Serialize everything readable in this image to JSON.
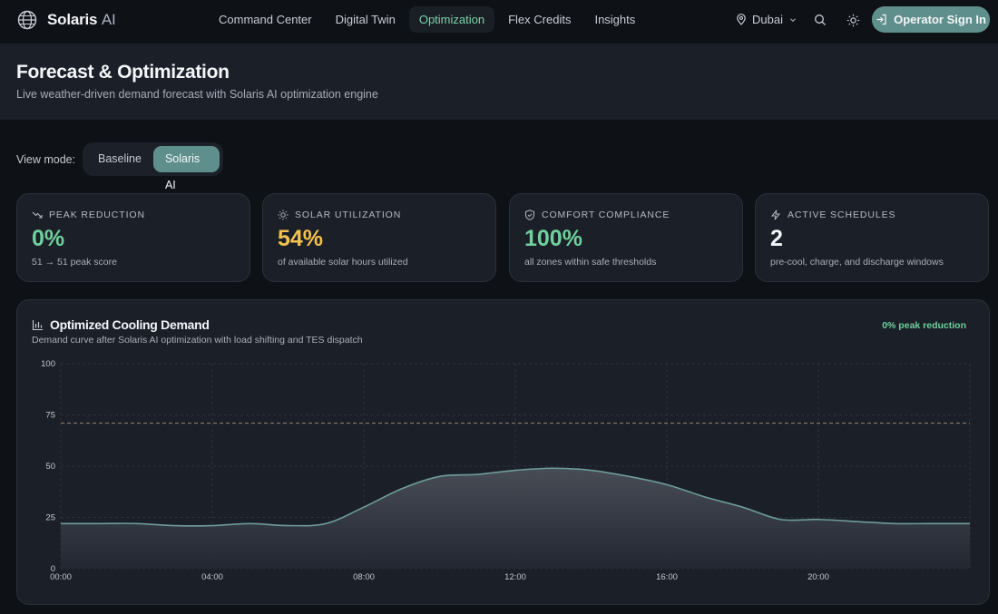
{
  "brand": {
    "name": "Solaris",
    "suffix": "AI"
  },
  "nav": {
    "links": [
      "Command Center",
      "Digital Twin",
      "Optimization",
      "Flex Credits",
      "Insights"
    ],
    "active": "Optimization",
    "location": "Dubai",
    "signin_label": "Operator Sign In"
  },
  "header": {
    "title": "Forecast & Optimization",
    "subtitle": "Live weather-driven demand forecast with Solaris AI optimization engine"
  },
  "view_mode": {
    "label": "View mode:",
    "options": [
      "Baseline",
      "Solaris AI"
    ],
    "selected": "Solaris AI"
  },
  "cards": [
    {
      "label": "PEAK REDUCTION",
      "icon": "trending-down-icon",
      "value": "0%",
      "value_color": "#6fd19c",
      "desc": "51 → 51 peak score"
    },
    {
      "label": "SOLAR UTILIZATION",
      "icon": "sun-icon",
      "value": "54%",
      "value_color": "#f2c14e",
      "desc": "of available solar hours utilized"
    },
    {
      "label": "COMFORT COMPLIANCE",
      "icon": "shield-check-icon",
      "value": "100%",
      "value_color": "#6fd19c",
      "desc": "all zones within safe thresholds"
    },
    {
      "label": "ACTIVE SCHEDULES",
      "icon": "lightning-icon",
      "value": "2",
      "value_color": "#f2f4f7",
      "desc": "pre-cool, charge, and discharge windows"
    }
  ],
  "chart_panel": {
    "title": "Optimized Cooling Demand",
    "subtitle": "Demand curve after Solaris AI optimization with load shifting and TES dispatch",
    "badge": "0% peak reduction"
  },
  "chart_data": {
    "type": "area",
    "title": "Optimized Cooling Demand",
    "xlabel": "",
    "ylabel": "",
    "ylim": [
      0,
      100
    ],
    "yticks": [
      0,
      25,
      50,
      75,
      100
    ],
    "xticks": [
      "00:00",
      "04:00",
      "08:00",
      "12:00",
      "16:00",
      "20:00"
    ],
    "threshold": 71,
    "grid": true,
    "line_color": "#6e9c9b",
    "x_hours": [
      0,
      1,
      2,
      3,
      4,
      5,
      6,
      7,
      8,
      9,
      10,
      11,
      12,
      13,
      14,
      15,
      16,
      17,
      18,
      19,
      20,
      21,
      22,
      23
    ],
    "values": [
      22,
      22,
      22,
      21,
      21,
      22,
      21,
      22,
      30,
      39,
      45,
      46,
      48,
      49,
      48,
      45,
      41,
      35,
      30,
      24,
      24,
      23,
      22,
      22
    ]
  }
}
